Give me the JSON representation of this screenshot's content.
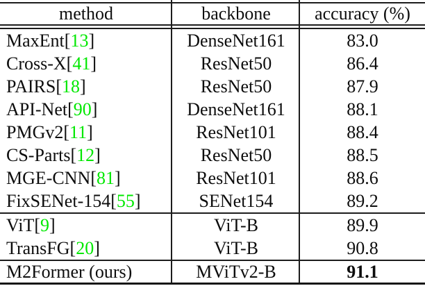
{
  "table": {
    "headers": [
      {
        "label": "method"
      },
      {
        "label": "backbone"
      },
      {
        "label": "accuracy (%)"
      }
    ],
    "groups": [
      {
        "rows": [
          {
            "method": "MaxEnt",
            "cite": "13",
            "backbone": "DenseNet161",
            "accuracy": "83.0",
            "bold_accuracy": false
          },
          {
            "method": "Cross-X",
            "cite": "41",
            "backbone": "ResNet50",
            "accuracy": "86.4",
            "bold_accuracy": false
          },
          {
            "method": "PAIRS",
            "cite": "18",
            "backbone": "ResNet50",
            "accuracy": "87.9",
            "bold_accuracy": false
          },
          {
            "method": "API-Net",
            "cite": "90",
            "backbone": "DenseNet161",
            "accuracy": "88.1",
            "bold_accuracy": false
          },
          {
            "method": "PMGv2",
            "cite": "11",
            "backbone": "ResNet101",
            "accuracy": "88.4",
            "bold_accuracy": false
          },
          {
            "method": "CS-Parts",
            "cite": "12",
            "backbone": "ResNet50",
            "accuracy": "88.5",
            "bold_accuracy": false
          },
          {
            "method": "MGE-CNN",
            "cite": "81",
            "backbone": "ResNet101",
            "accuracy": "88.6",
            "bold_accuracy": false
          },
          {
            "method": "FixSENet-154",
            "cite": "55",
            "backbone": "SENet154",
            "accuracy": "89.2",
            "bold_accuracy": false
          }
        ]
      },
      {
        "rows": [
          {
            "method": "ViT",
            "cite": "9",
            "backbone": "ViT-B",
            "accuracy": "89.9",
            "bold_accuracy": false
          },
          {
            "method": "TransFG",
            "cite": "20",
            "backbone": "ViT-B",
            "accuracy": "90.8",
            "bold_accuracy": false
          }
        ]
      },
      {
        "rows": [
          {
            "method": "M2Former (ours)",
            "cite": null,
            "backbone": "MViTv2-B",
            "accuracy": "91.1",
            "bold_accuracy": true
          }
        ]
      }
    ],
    "bracket_open": "[",
    "bracket_close": "]"
  },
  "colors": {
    "citation_green": "#00e800",
    "text": "#0d0d0d",
    "rule": "#1c1c1c",
    "background": "#ffffff"
  }
}
